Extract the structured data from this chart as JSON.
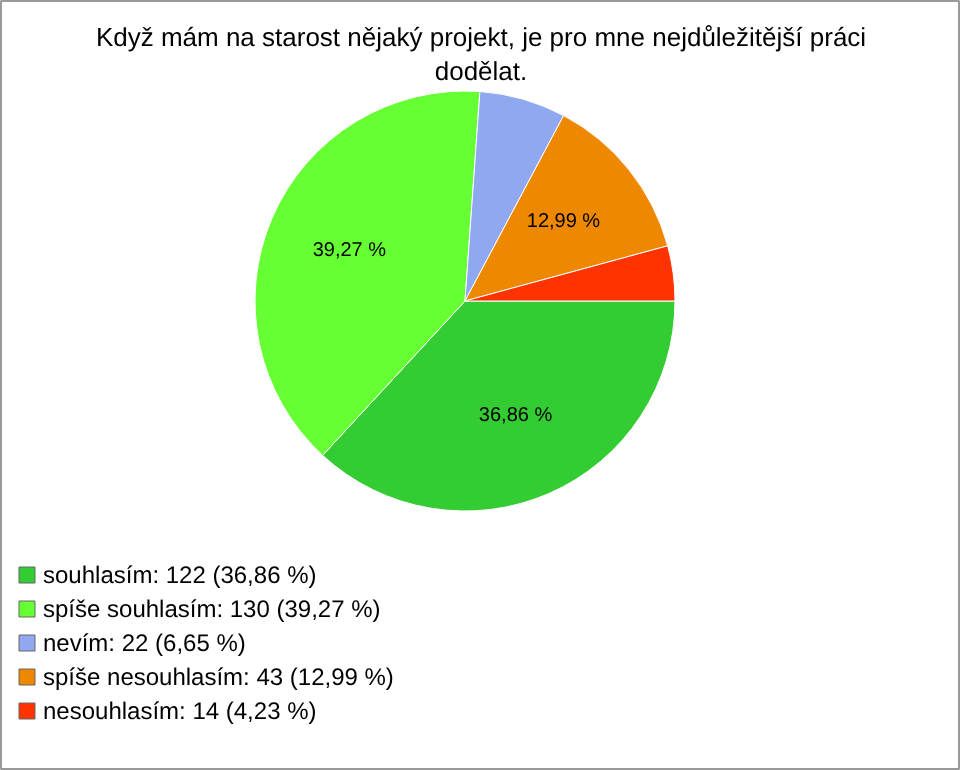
{
  "chart_data": {
    "type": "pie",
    "title": "Když mám na starost nějaký projekt, je pro mne nejdůležitější práci dodělat.",
    "categories": [
      "souhlasím: 122 (36,86 %)",
      "spíše souhlasím: 130 (39,27 %)",
      "nevím: 22 (6,65 %)",
      "spíše nesouhlasím: 43 (12,99 %)",
      "nesouhlasím: 14 (4,23 %)"
    ],
    "values": [
      36.86,
      39.27,
      6.65,
      12.99,
      4.23
    ],
    "colors": [
      "#33cc33",
      "#66ff33",
      "#8fa8f0",
      "#ee8800",
      "#ff3300"
    ],
    "value_labels": [
      "36,86 %",
      "39,27 %",
      null,
      "12,99 %",
      null
    ],
    "legend": "bottom"
  }
}
